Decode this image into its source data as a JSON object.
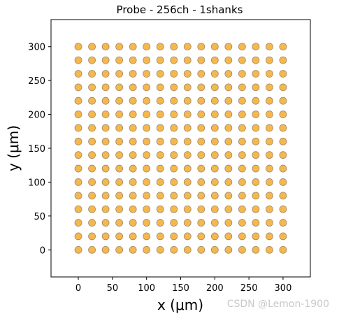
{
  "chart_data": {
    "type": "scatter",
    "title": "Probe - 256ch - 1shanks",
    "xlabel": "x (μm)",
    "ylabel": "y (μm)",
    "xlim": [
      -40,
      340
    ],
    "ylim": [
      -40,
      340
    ],
    "xticks": [
      0,
      50,
      100,
      150,
      200,
      250,
      300
    ],
    "yticks": [
      0,
      50,
      100,
      150,
      200,
      250,
      300
    ],
    "grid": false,
    "series": [
      {
        "marker_fill": "#f5b84c",
        "marker_edge": "#a0896a",
        "x_values": [
          0,
          20,
          40,
          60,
          80,
          100,
          120,
          140,
          160,
          180,
          200,
          220,
          240,
          260,
          280,
          300
        ],
        "y_values": [
          0,
          20,
          40,
          60,
          80,
          100,
          120,
          140,
          160,
          180,
          200,
          220,
          240,
          260,
          280,
          300
        ]
      }
    ]
  },
  "watermark": "CSDN @Lemon-1900"
}
